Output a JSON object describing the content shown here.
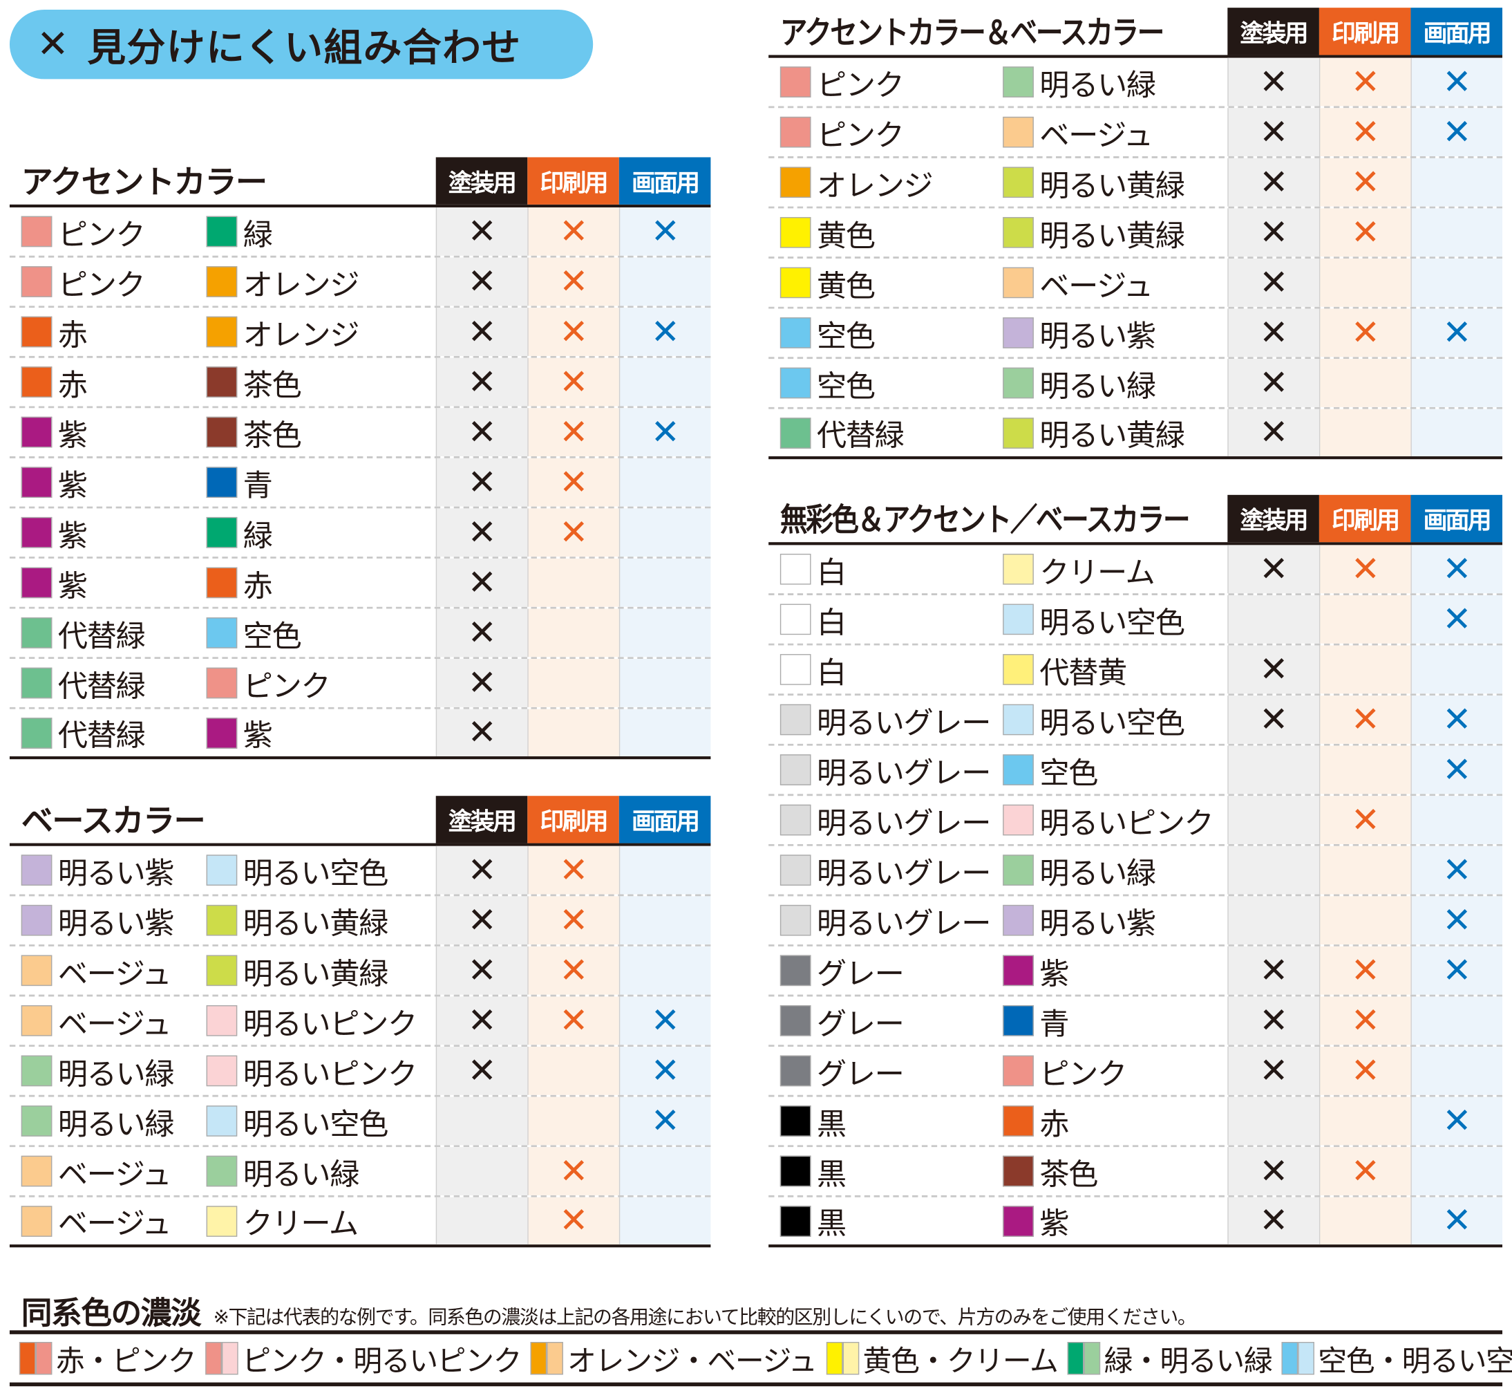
{
  "title": {
    "mark": "✕",
    "text": "見分けにくい組み合わせ",
    "background": "#6cc8ef"
  },
  "columns": [
    "塗装用",
    "印刷用",
    "画面用"
  ],
  "column_colors": {
    "header": [
      "#231815",
      "#eb6120",
      "#0071bc"
    ],
    "mark": [
      "#231815",
      "#eb6120",
      "#0071bc"
    ],
    "background": [
      "#efefef",
      "#fdf1e6",
      "#ecf4fb"
    ]
  },
  "mark_symbol": "✕",
  "swatch_colors": {
    "ピンク": "#ef9288",
    "緑": "#00a870",
    "オレンジ": "#f5a100",
    "赤": "#eb5f1b",
    "茶色": "#8b3a2b",
    "紫": "#aa1a82",
    "青": "#0068b7",
    "代替緑": "#6dc08f",
    "空色": "#6cc8ef",
    "明るい紫": "#c4b3d9",
    "明るい空色": "#c5e6f7",
    "明るい黄緑": "#cddc49",
    "ベージュ": "#fbcb8e",
    "明るいピンク": "#fbd3d5",
    "明るい緑": "#9bcf9d",
    "クリーム": "#fff3a8",
    "黄色": "#fff100",
    "代替黄": "#fff07a",
    "白": "#ffffff",
    "明るいグレー": "#dcdcdc",
    "グレー": "#7b7d82",
    "黒": "#000000"
  },
  "tables": [
    {
      "title": "アクセントカラー",
      "rows": [
        {
          "a": "ピンク",
          "b": "緑",
          "marks": [
            true,
            true,
            true
          ]
        },
        {
          "a": "ピンク",
          "b": "オレンジ",
          "marks": [
            true,
            true,
            false
          ]
        },
        {
          "a": "赤",
          "b": "オレンジ",
          "marks": [
            true,
            true,
            true
          ]
        },
        {
          "a": "赤",
          "b": "茶色",
          "marks": [
            true,
            true,
            false
          ]
        },
        {
          "a": "紫",
          "b": "茶色",
          "marks": [
            true,
            true,
            true
          ]
        },
        {
          "a": "紫",
          "b": "青",
          "marks": [
            true,
            true,
            false
          ]
        },
        {
          "a": "紫",
          "b": "緑",
          "marks": [
            true,
            true,
            false
          ]
        },
        {
          "a": "紫",
          "b": "赤",
          "marks": [
            true,
            false,
            false
          ]
        },
        {
          "a": "代替緑",
          "b": "空色",
          "marks": [
            true,
            false,
            false
          ]
        },
        {
          "a": "代替緑",
          "b": "ピンク",
          "marks": [
            true,
            false,
            false
          ]
        },
        {
          "a": "代替緑",
          "b": "紫",
          "marks": [
            true,
            false,
            false
          ]
        }
      ]
    },
    {
      "title": "ベースカラー",
      "rows": [
        {
          "a": "明るい紫",
          "b": "明るい空色",
          "marks": [
            true,
            true,
            false
          ]
        },
        {
          "a": "明るい紫",
          "b": "明るい黄緑",
          "marks": [
            true,
            true,
            false
          ]
        },
        {
          "a": "ベージュ",
          "b": "明るい黄緑",
          "marks": [
            true,
            true,
            false
          ]
        },
        {
          "a": "ベージュ",
          "b": "明るいピンク",
          "marks": [
            true,
            true,
            true
          ]
        },
        {
          "a": "明るい緑",
          "b": "明るいピンク",
          "marks": [
            true,
            false,
            true
          ]
        },
        {
          "a": "明るい緑",
          "b": "明るい空色",
          "marks": [
            false,
            false,
            true
          ]
        },
        {
          "a": "ベージュ",
          "b": "明るい緑",
          "marks": [
            false,
            true,
            false
          ]
        },
        {
          "a": "ベージュ",
          "b": "クリーム",
          "marks": [
            false,
            true,
            false
          ]
        }
      ]
    },
    {
      "title": "アクセントカラー＆ベースカラー",
      "rows": [
        {
          "a": "ピンク",
          "b": "明るい緑",
          "marks": [
            true,
            true,
            true
          ]
        },
        {
          "a": "ピンク",
          "b": "ベージュ",
          "marks": [
            true,
            true,
            true
          ]
        },
        {
          "a": "オレンジ",
          "b": "明るい黄緑",
          "marks": [
            true,
            true,
            false
          ]
        },
        {
          "a": "黄色",
          "b": "明るい黄緑",
          "marks": [
            true,
            true,
            false
          ]
        },
        {
          "a": "黄色",
          "b": "ベージュ",
          "marks": [
            true,
            false,
            false
          ]
        },
        {
          "a": "空色",
          "b": "明るい紫",
          "marks": [
            true,
            true,
            true
          ]
        },
        {
          "a": "空色",
          "b": "明るい緑",
          "marks": [
            true,
            false,
            false
          ]
        },
        {
          "a": "代替緑",
          "b": "明るい黄緑",
          "marks": [
            true,
            false,
            false
          ]
        }
      ]
    },
    {
      "title": "無彩色＆アクセント／ベースカラー",
      "rows": [
        {
          "a": "白",
          "b": "クリーム",
          "marks": [
            true,
            true,
            true
          ]
        },
        {
          "a": "白",
          "b": "明るい空色",
          "marks": [
            false,
            false,
            true
          ]
        },
        {
          "a": "白",
          "b": "代替黄",
          "marks": [
            true,
            false,
            false
          ]
        },
        {
          "a": "明るいグレー",
          "b": "明るい空色",
          "marks": [
            true,
            true,
            true
          ]
        },
        {
          "a": "明るいグレー",
          "b": "空色",
          "marks": [
            false,
            false,
            true
          ]
        },
        {
          "a": "明るいグレー",
          "b": "明るいピンク",
          "marks": [
            false,
            true,
            false
          ]
        },
        {
          "a": "明るいグレー",
          "b": "明るい緑",
          "marks": [
            false,
            false,
            true
          ]
        },
        {
          "a": "明るいグレー",
          "b": "明るい紫",
          "marks": [
            false,
            false,
            true
          ]
        },
        {
          "a": "グレー",
          "b": "紫",
          "marks": [
            true,
            true,
            true
          ]
        },
        {
          "a": "グレー",
          "b": "青",
          "marks": [
            true,
            true,
            false
          ]
        },
        {
          "a": "グレー",
          "b": "ピンク",
          "marks": [
            true,
            true,
            false
          ]
        },
        {
          "a": "黒",
          "b": "赤",
          "marks": [
            false,
            false,
            true
          ]
        },
        {
          "a": "黒",
          "b": "茶色",
          "marks": [
            true,
            true,
            false
          ]
        },
        {
          "a": "黒",
          "b": "紫",
          "marks": [
            true,
            false,
            true
          ]
        }
      ]
    }
  ],
  "shades": {
    "title": "同系色の濃淡",
    "note": "※下記は代表的な例です。同系色の濃淡は上記の各用途において比較的区別しにくいので、片方のみをご使用ください。",
    "pairs": [
      {
        "label": "赤・ピンク",
        "colors": [
          "#eb5f1b",
          "#ef9288"
        ]
      },
      {
        "label": "ピンク・明るいピンク",
        "colors": [
          "#ef9288",
          "#fbd3d5"
        ]
      },
      {
        "label": "オレンジ・ベージュ",
        "colors": [
          "#f5a100",
          "#fbcb8e"
        ]
      },
      {
        "label": "黄色・クリーム",
        "colors": [
          "#fff100",
          "#fff3a8"
        ]
      },
      {
        "label": "緑・明るい緑",
        "colors": [
          "#00a870",
          "#9bcf9d"
        ]
      },
      {
        "label": "空色・明るい空色",
        "colors": [
          "#6cc8ef",
          "#c5e6f7"
        ]
      }
    ]
  }
}
